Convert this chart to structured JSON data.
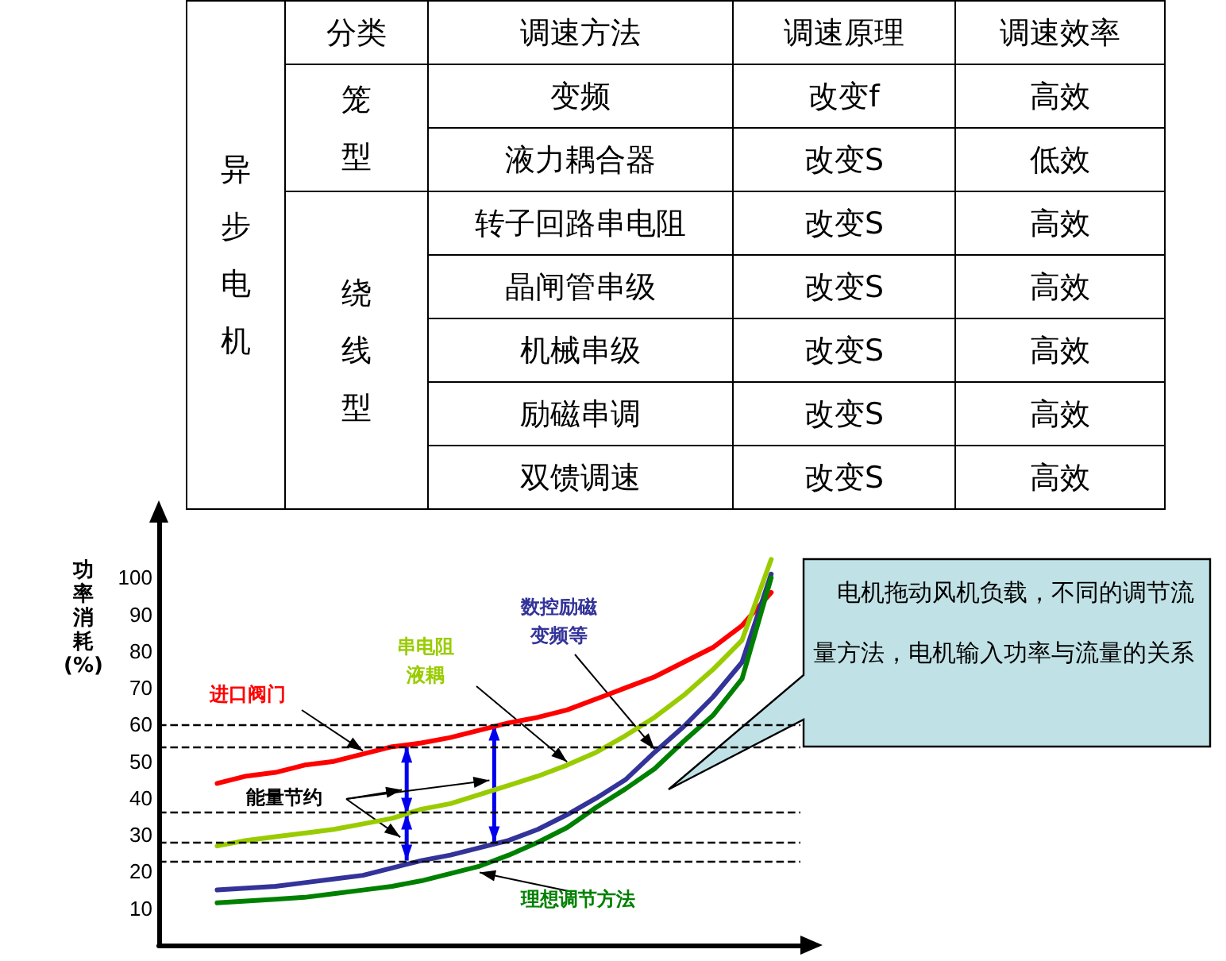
{
  "chart_data": [
    {
      "type": "other",
      "annotations": [
        "异步电机",
        "分类",
        "调速方法",
        "调速原理",
        "调速效率",
        "笼型",
        "变频",
        "改变f",
        "高效",
        "液力耦合器",
        "改变S",
        "低效",
        "绕线型",
        "转子回路串电阻",
        "改变S",
        "高效",
        "晶闸管串级",
        "改变S",
        "高效",
        "机械串级",
        "改变S",
        "高效",
        "励磁串调",
        "改变S",
        "高效",
        "双馈调速",
        "改变S",
        "高效"
      ]
    },
    {
      "type": "line",
      "ylabel": "功率消耗(%)",
      "categories": [
        null,
        null,
        null,
        null,
        null,
        null,
        null,
        null,
        null,
        null,
        null,
        null,
        null,
        null,
        null,
        null,
        null,
        null,
        null,
        null,
        null,
        null,
        null
      ],
      "series": [
        {
          "name": "进口阀门",
          "color": "#ff0000",
          "values": [
            null,
            null,
            44,
            46,
            47,
            49,
            50,
            52,
            54,
            55,
            56.5,
            58.5,
            60.5,
            62,
            64,
            67,
            70,
            73,
            77,
            81,
            87,
            96,
            null
          ]
        },
        {
          "name": "串电阻液耦",
          "color": "#99cc00",
          "values": [
            null,
            null,
            27,
            28.5,
            29.5,
            30.5,
            31.5,
            33,
            34.5,
            37,
            38.5,
            41,
            43.5,
            46,
            49,
            52.5,
            57,
            62,
            68,
            75,
            83,
            105,
            null
          ]
        },
        {
          "name": "数控励磁变频等",
          "color": "#333399",
          "values": [
            null,
            null,
            15,
            15.5,
            16,
            17,
            18,
            19,
            21,
            23,
            24.5,
            26.5,
            28.5,
            31.5,
            35.5,
            40,
            45,
            52.5,
            59.5,
            67.5,
            77,
            101,
            null
          ]
        },
        {
          "name": "理想调节方法",
          "color": "#008000",
          "values": [
            null,
            null,
            11.5,
            12,
            12.5,
            13,
            14,
            15,
            16,
            17.5,
            19.5,
            21.5,
            24.5,
            28,
            32,
            37.5,
            42.5,
            48,
            55.5,
            62.5,
            72.5,
            100,
            null
          ]
        }
      ],
      "ylim": [
        0,
        115
      ],
      "yticks": [
        10,
        20,
        30,
        40,
        50,
        60,
        70,
        80,
        90,
        100
      ],
      "tick_labels": "y",
      "grid": false,
      "legend": false,
      "marker": "none",
      "line_style": "solid",
      "ref_lines": [
        {
          "axis": "y",
          "value": 60,
          "color": "#000000",
          "line_style": "dashed"
        },
        {
          "axis": "y",
          "value": 54,
          "color": "#000000",
          "line_style": "dashed"
        },
        {
          "axis": "y",
          "value": 36,
          "color": "#000000",
          "line_style": "dashed"
        },
        {
          "axis": "y",
          "value": 28,
          "color": "#000000",
          "line_style": "dashed"
        },
        {
          "axis": "y",
          "value": 23,
          "color": "#000000",
          "line_style": "dashed"
        }
      ],
      "annotations": [
        "能量节约",
        "电机拖动风机负载，不同的调节流量方法，电机输入功率与流量的关系"
      ]
    }
  ]
}
